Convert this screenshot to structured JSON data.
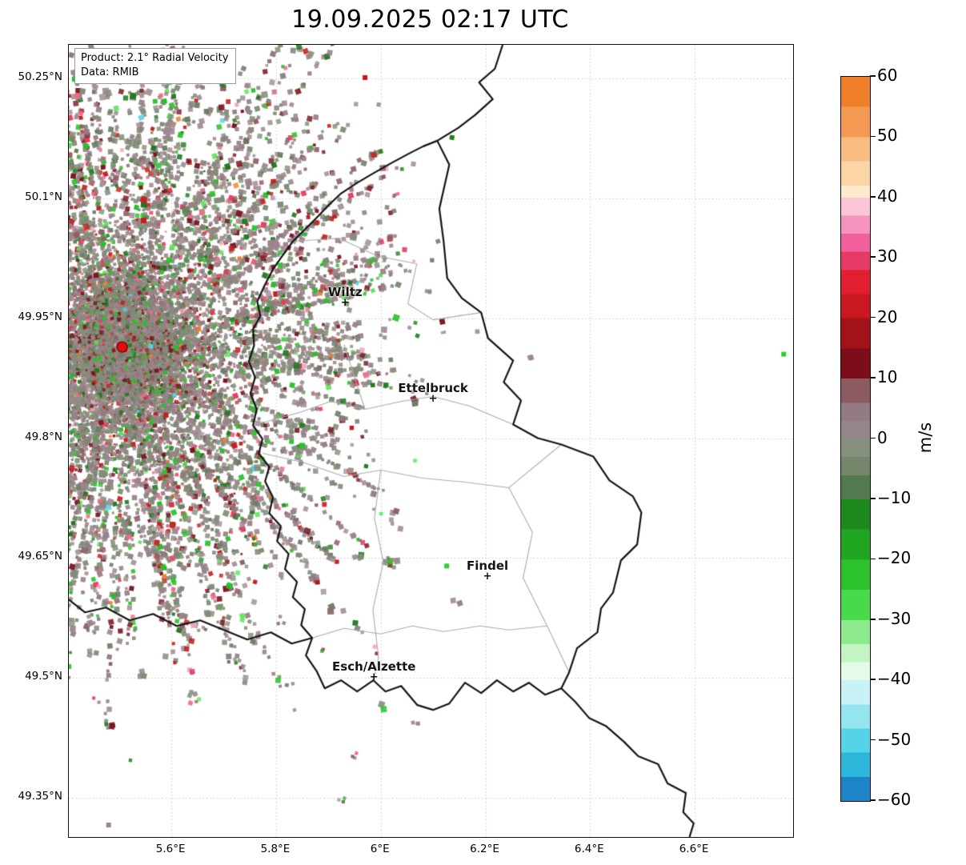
{
  "title": "19.09.2025 02:17 UTC",
  "info_box": {
    "line1": "Product: 2.1° Radial Velocity",
    "line2": "Data: RMIB"
  },
  "map": {
    "lon_min": 5.404,
    "lon_max": 6.788,
    "lat_min": 49.301,
    "lat_max": 50.292,
    "grid_color": "#cccccc",
    "country_border_color": "#141414",
    "district_border_color": "#ababab",
    "marker_glyph": "+",
    "xticks": [
      {
        "value": 5.6,
        "label": "5.6°E"
      },
      {
        "value": 5.8,
        "label": "5.8°E"
      },
      {
        "value": 6.0,
        "label": "6°E"
      },
      {
        "value": 6.2,
        "label": "6.2°E"
      },
      {
        "value": 6.4,
        "label": "6.4°E"
      },
      {
        "value": 6.6,
        "label": "6.6°E"
      }
    ],
    "yticks": [
      {
        "value": 50.25,
        "label": "50.25°N"
      },
      {
        "value": 50.1,
        "label": "50.1°N"
      },
      {
        "value": 49.95,
        "label": "49.95°N"
      },
      {
        "value": 49.8,
        "label": "49.8°N"
      },
      {
        "value": 49.65,
        "label": "49.65°N"
      },
      {
        "value": 49.5,
        "label": "49.5°N"
      },
      {
        "value": 49.35,
        "label": "49.35°N"
      }
    ],
    "cities": [
      {
        "name": "Wiltz",
        "lon": 5.932,
        "lat": 49.969
      },
      {
        "name": "Ettelbruck",
        "lon": 6.1,
        "lat": 49.849
      },
      {
        "name": "Findel",
        "lon": 6.204,
        "lat": 49.626
      },
      {
        "name": "Esch/Alzette",
        "lon": 5.987,
        "lat": 49.5
      }
    ],
    "radar_site": {
      "lon": 5.506,
      "lat": 49.914,
      "color": "#e01010",
      "edge_color": "#7a0000"
    },
    "borders_black": [
      [
        [
          6.233,
          50.292
        ],
        [
          6.218,
          50.262
        ],
        [
          6.188,
          50.245
        ],
        [
          6.214,
          50.224
        ],
        [
          6.18,
          50.204
        ],
        [
          6.148,
          50.188
        ],
        [
          6.108,
          50.172
        ]
      ],
      [
        [
          6.108,
          50.172
        ],
        [
          6.131,
          50.142
        ],
        [
          6.112,
          50.087
        ],
        [
          6.12,
          50.047
        ],
        [
          6.127,
          50.0
        ],
        [
          6.155,
          49.975
        ],
        [
          6.192,
          49.957
        ],
        [
          6.205,
          49.925
        ],
        [
          6.253,
          49.897
        ],
        [
          6.235,
          49.87
        ],
        [
          6.268,
          49.847
        ],
        [
          6.253,
          49.817
        ],
        [
          6.3,
          49.8
        ],
        [
          6.345,
          49.792
        ],
        [
          6.406,
          49.777
        ],
        [
          6.437,
          49.747
        ],
        [
          6.482,
          49.727
        ],
        [
          6.498,
          49.707
        ],
        [
          6.49,
          49.667
        ],
        [
          6.459,
          49.647
        ],
        [
          6.444,
          49.607
        ],
        [
          6.421,
          49.587
        ],
        [
          6.414,
          49.557
        ],
        [
          6.375,
          49.537
        ],
        [
          6.36,
          49.507
        ],
        [
          6.345,
          49.487
        ],
        [
          6.314,
          49.479
        ],
        [
          6.283,
          49.494
        ],
        [
          6.253,
          49.483
        ],
        [
          6.222,
          49.497
        ],
        [
          6.192,
          49.481
        ],
        [
          6.161,
          49.494
        ],
        [
          6.131,
          49.468
        ],
        [
          6.1,
          49.46
        ],
        [
          6.07,
          49.466
        ],
        [
          6.039,
          49.49
        ],
        [
          6.009,
          49.483
        ],
        [
          5.986,
          49.497
        ],
        [
          5.955,
          49.483
        ],
        [
          5.924,
          49.497
        ],
        [
          5.893,
          49.487
        ],
        [
          5.878,
          49.508
        ],
        [
          5.857,
          49.528
        ],
        [
          5.869,
          49.55
        ],
        [
          5.848,
          49.566
        ],
        [
          5.855,
          49.586
        ],
        [
          5.832,
          49.601
        ],
        [
          5.84,
          49.62
        ],
        [
          5.817,
          49.636
        ],
        [
          5.824,
          49.655
        ],
        [
          5.802,
          49.671
        ],
        [
          5.809,
          49.69
        ],
        [
          5.787,
          49.706
        ],
        [
          5.794,
          49.726
        ],
        [
          5.779,
          49.746
        ],
        [
          5.787,
          49.764
        ],
        [
          5.767,
          49.781
        ],
        [
          5.774,
          49.799
        ],
        [
          5.756,
          49.816
        ],
        [
          5.763,
          49.836
        ],
        [
          5.751,
          49.856
        ],
        [
          5.76,
          49.876
        ],
        [
          5.748,
          49.896
        ],
        [
          5.758,
          49.916
        ],
        [
          5.756,
          49.936
        ],
        [
          5.77,
          49.953
        ],
        [
          5.764,
          49.971
        ],
        [
          5.778,
          49.991
        ],
        [
          5.794,
          50.011
        ],
        [
          5.812,
          50.028
        ],
        [
          5.832,
          50.046
        ],
        [
          5.855,
          50.061
        ],
        [
          5.878,
          50.076
        ],
        [
          5.9,
          50.091
        ],
        [
          5.924,
          50.106
        ],
        [
          5.954,
          50.119
        ],
        [
          5.985,
          50.131
        ],
        [
          6.02,
          50.144
        ],
        [
          6.054,
          50.156
        ],
        [
          6.081,
          50.165
        ],
        [
          6.108,
          50.172
        ]
      ],
      [
        [
          5.869,
          49.55
        ],
        [
          5.83,
          49.543
        ],
        [
          5.79,
          49.557
        ],
        [
          5.745,
          49.548
        ],
        [
          5.7,
          49.56
        ],
        [
          5.655,
          49.572
        ],
        [
          5.61,
          49.565
        ],
        [
          5.565,
          49.58
        ],
        [
          5.52,
          49.572
        ],
        [
          5.475,
          49.588
        ],
        [
          5.435,
          49.582
        ],
        [
          5.404,
          49.598
        ]
      ],
      [
        [
          6.345,
          49.487
        ],
        [
          6.372,
          49.47
        ],
        [
          6.398,
          49.45
        ],
        [
          6.43,
          49.44
        ],
        [
          6.465,
          49.42
        ],
        [
          6.492,
          49.402
        ],
        [
          6.53,
          49.392
        ],
        [
          6.548,
          49.368
        ],
        [
          6.583,
          49.356
        ],
        [
          6.578,
          49.332
        ],
        [
          6.598,
          49.318
        ],
        [
          6.59,
          49.301
        ]
      ]
    ],
    "borders_gray": [
      [
        [
          5.832,
          50.046
        ],
        [
          5.92,
          50.05
        ],
        [
          5.993,
          50.028
        ],
        [
          6.069,
          50.018
        ],
        [
          6.052,
          49.968
        ],
        [
          6.1,
          49.948
        ],
        [
          6.192,
          49.957
        ]
      ],
      [
        [
          5.93,
          49.917
        ],
        [
          5.952,
          49.872
        ],
        [
          5.97,
          49.836
        ]
      ],
      [
        [
          5.756,
          49.816
        ],
        [
          5.845,
          49.832
        ],
        [
          5.905,
          49.846
        ],
        [
          5.97,
          49.836
        ],
        [
          6.04,
          49.846
        ],
        [
          6.1,
          49.852
        ],
        [
          6.17,
          49.84
        ],
        [
          6.253,
          49.817
        ]
      ],
      [
        [
          5.774,
          49.781
        ],
        [
          5.85,
          49.77
        ],
        [
          5.93,
          49.752
        ],
        [
          6.0,
          49.76
        ],
        [
          6.08,
          49.75
        ],
        [
          6.16,
          49.745
        ],
        [
          6.245,
          49.738
        ],
        [
          6.345,
          49.792
        ]
      ],
      [
        [
          6.0,
          49.76
        ],
        [
          5.988,
          49.7
        ],
        [
          6.005,
          49.645
        ],
        [
          5.985,
          49.585
        ],
        [
          5.996,
          49.525
        ],
        [
          5.986,
          49.497
        ]
      ],
      [
        [
          6.245,
          49.738
        ],
        [
          6.29,
          49.682
        ],
        [
          6.272,
          49.625
        ],
        [
          6.318,
          49.565
        ],
        [
          6.36,
          49.507
        ]
      ],
      [
        [
          5.869,
          49.55
        ],
        [
          5.93,
          49.562
        ],
        [
          6.0,
          49.555
        ],
        [
          6.06,
          49.565
        ],
        [
          6.12,
          49.558
        ],
        [
          6.19,
          49.565
        ],
        [
          6.245,
          49.56
        ],
        [
          6.318,
          49.565
        ]
      ]
    ],
    "clutter": {
      "seed": 1337,
      "core_points": 12000,
      "core_sigma": 80,
      "streak_count": 340,
      "far_points": 700,
      "palette": [
        {
          "color": "#9a8489",
          "w": 0.3
        },
        {
          "color": "#8e7b80",
          "w": 0.08
        },
        {
          "color": "#a59292",
          "w": 0.05
        },
        {
          "color": "#7f8d76",
          "w": 0.22
        },
        {
          "color": "#6d7d63",
          "w": 0.07
        },
        {
          "color": "#8f5f68",
          "w": 0.04
        },
        {
          "color": "#7a1622",
          "w": 0.05
        },
        {
          "color": "#c41f1f",
          "w": 0.03
        },
        {
          "color": "#e23a5e",
          "w": 0.012
        },
        {
          "color": "#ef6a8e",
          "w": 0.015
        },
        {
          "color": "#f2a6bb",
          "w": 0.008
        },
        {
          "color": "#27c127",
          "w": 0.045
        },
        {
          "color": "#1d7a1d",
          "w": 0.04
        },
        {
          "color": "#59e659",
          "w": 0.012
        },
        {
          "color": "#ef7f2e",
          "w": 0.003
        },
        {
          "color": "#54d4e6",
          "w": 0.002
        }
      ],
      "strays": [
        {
          "lon": 5.97,
          "lat": 50.251,
          "color": "#cc1515"
        },
        {
          "lon": 6.77,
          "lat": 49.905,
          "color": "#2ecc2e"
        },
        {
          "lon": 6.126,
          "lat": 49.64,
          "color": "#2ecc2e"
        },
        {
          "lon": 5.48,
          "lat": 49.316,
          "color": "#9a8489"
        }
      ]
    }
  },
  "colorbar": {
    "unit": "m/s",
    "vmax": 60,
    "vmin": -60,
    "ticks": [
      {
        "value": 60,
        "label": "60"
      },
      {
        "value": 50,
        "label": "50"
      },
      {
        "value": 40,
        "label": "40"
      },
      {
        "value": 30,
        "label": "30"
      },
      {
        "value": 20,
        "label": "20"
      },
      {
        "value": 10,
        "label": "10"
      },
      {
        "value": 0,
        "label": "0"
      },
      {
        "value": -10,
        "label": "−10"
      },
      {
        "value": -20,
        "label": "−20"
      },
      {
        "value": -30,
        "label": "−30"
      },
      {
        "value": -40,
        "label": "−40"
      },
      {
        "value": -50,
        "label": "−50"
      },
      {
        "value": -60,
        "label": "−60"
      }
    ],
    "bands": [
      [
        60,
        55,
        "#f07f2a"
      ],
      [
        55,
        50,
        "#f49a52"
      ],
      [
        50,
        46,
        "#f8bc80"
      ],
      [
        46,
        42,
        "#fbd5a6"
      ],
      [
        42,
        40,
        "#fde9cc"
      ],
      [
        40,
        37,
        "#fac6d8"
      ],
      [
        37,
        34,
        "#f693bd"
      ],
      [
        34,
        31,
        "#f1609c"
      ],
      [
        31,
        28,
        "#e73a67"
      ],
      [
        28,
        24,
        "#e11f31"
      ],
      [
        24,
        20,
        "#c9181f"
      ],
      [
        20,
        15,
        "#a31218"
      ],
      [
        15,
        10,
        "#7d0e19"
      ],
      [
        10,
        6,
        "#8c5a63"
      ],
      [
        6,
        3,
        "#927c82"
      ],
      [
        3,
        0,
        "#958789"
      ],
      [
        0,
        -3,
        "#87907c"
      ],
      [
        -3,
        -6,
        "#76866a"
      ],
      [
        -6,
        -10,
        "#527a4e"
      ],
      [
        -10,
        -15,
        "#1e8a1e"
      ],
      [
        -15,
        -20,
        "#21a621"
      ],
      [
        -20,
        -25,
        "#2cc22c"
      ],
      [
        -25,
        -30,
        "#48da48"
      ],
      [
        -30,
        -34,
        "#8deb8d"
      ],
      [
        -34,
        -37,
        "#c3f4c3"
      ],
      [
        -37,
        -40,
        "#e4fbe9"
      ],
      [
        -40,
        -44,
        "#c9f2f6"
      ],
      [
        -44,
        -48,
        "#94e5f0"
      ],
      [
        -48,
        -52,
        "#55d3e8"
      ],
      [
        -52,
        -56,
        "#2cb6da"
      ],
      [
        -56,
        -60,
        "#1e84c8"
      ]
    ]
  }
}
